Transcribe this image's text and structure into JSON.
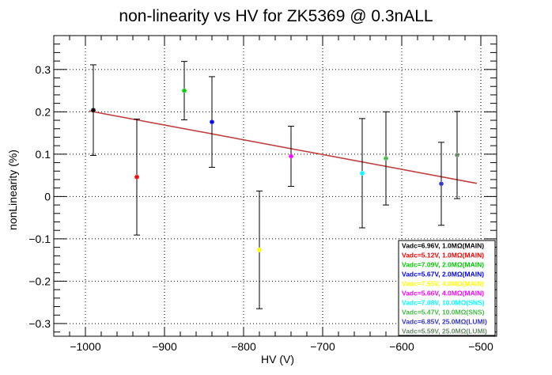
{
  "chart_data": {
    "type": "scatter",
    "title": "non-linearity vs HV for ZK5369 @ 0.3nALL",
    "xlabel": "HV (V)",
    "ylabel": "nonLinearity (%)",
    "xlim": [
      -1040,
      -480
    ],
    "ylim": [
      -0.33,
      0.38
    ],
    "xticks": [
      -1000,
      -900,
      -800,
      -700,
      -600,
      -500
    ],
    "yticks": [
      -0.3,
      -0.2,
      -0.1,
      0,
      0.1,
      0.2,
      0.3
    ],
    "xtick_labels": [
      "−1000",
      "−900",
      "−800",
      "−700",
      "−600",
      "−500"
    ],
    "ytick_labels": [
      "−0.3",
      "−0.2",
      "−0.1",
      "0",
      "0.1",
      "0.2",
      "0.3"
    ],
    "grid": true,
    "legend_position": "bottom-right",
    "series": [
      {
        "name": "Vadc=6.96V, 1.0MΩ(MAIN)",
        "color": "#000000",
        "x": [
          -990
        ],
        "y": [
          0.204
        ],
        "err": [
          0.107
        ]
      },
      {
        "name": "Vadc=5.12V, 1.0MΩ(MAIN)",
        "color": "#ff0000",
        "x": [
          -935
        ],
        "y": [
          0.046
        ],
        "err": [
          0.137
        ]
      },
      {
        "name": "Vadc=7.09V, 2.0MΩ(MAIN)",
        "color": "#00cc00",
        "x": [
          -875
        ],
        "y": [
          0.25
        ],
        "err": [
          0.069
        ]
      },
      {
        "name": "Vadc=5.67V, 2.0MΩ(MAIN)",
        "color": "#0000ff",
        "x": [
          -840
        ],
        "y": [
          0.176
        ],
        "err": [
          0.107
        ]
      },
      {
        "name": "Vadc=7.55V, 4.0MΩ(MAIN)",
        "color": "#ffff00",
        "x": [
          -780
        ],
        "y": [
          -0.126
        ],
        "err": [
          0.139
        ]
      },
      {
        "name": "Vadc=5.66V, 4.0MΩ(MAIN)",
        "color": "#ff00ff",
        "x": [
          -740
        ],
        "y": [
          0.095
        ],
        "err": [
          0.071
        ]
      },
      {
        "name": "Vadc=7.08V, 10.0MΩ(SNS)",
        "color": "#00ffff",
        "x": [
          -650
        ],
        "y": [
          0.055
        ],
        "err": [
          0.129
        ]
      },
      {
        "name": "Vadc=5.47V, 10.0MΩ(SNS)",
        "color": "#44bb44",
        "x": [
          -620
        ],
        "y": [
          0.09
        ],
        "err": [
          0.11
        ]
      },
      {
        "name": "Vadc=6.85V, 25.0MΩ(LUMI)",
        "color": "#3333cc",
        "x": [
          -550
        ],
        "y": [
          0.03
        ],
        "err": [
          0.098
        ]
      },
      {
        "name": "Vadc=5.59V, 25.0MΩ(LUMI)",
        "color": "#6a8a6a",
        "x": [
          -530
        ],
        "y": [
          0.098
        ],
        "err": [
          0.103
        ]
      }
    ],
    "fit_line": {
      "color": "#c04040",
      "x": [
        -995,
        -505
      ],
      "y": [
        0.202,
        0.031
      ]
    }
  }
}
